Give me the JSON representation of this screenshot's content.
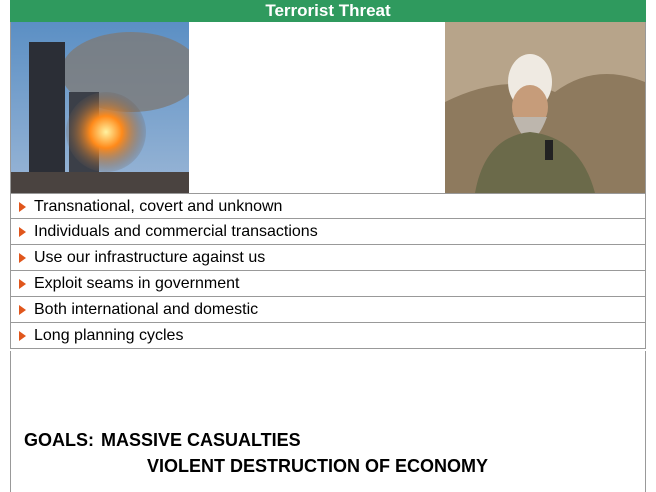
{
  "header": {
    "title": "Terrorist Threat"
  },
  "bullets": [
    "Transnational, covert and unknown",
    "Individuals and commercial transactions",
    "Use our infrastructure against us",
    "Exploit seams in government",
    "Both international and domestic",
    "Long planning cycles"
  ],
  "goals": {
    "label": "GOALS:",
    "lines": [
      "MASSIVE CASUALTIES",
      "VIOLENT DESTRUCTION OF ECONOMY"
    ]
  }
}
